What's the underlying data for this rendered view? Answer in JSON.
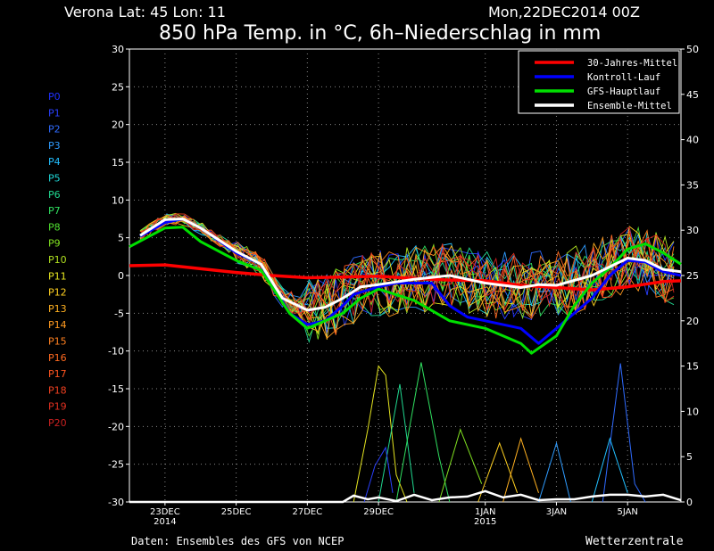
{
  "header": {
    "location": "Verona   Lat: 45 Lon: 11",
    "run": "Mon,22DEC2014 00Z",
    "title": "850 hPa Temp. in °C, 6h–Niederschlag in mm"
  },
  "footer": {
    "credit": "Daten: Ensembles des GFS von NCEP",
    "brand": "Wetterzentrale"
  },
  "chart_data": {
    "type": "line",
    "x_ticks": [
      {
        "label": "23DEC",
        "sub": "2014",
        "day": 1.0
      },
      {
        "label": "25DEC",
        "sub": "",
        "day": 3.0
      },
      {
        "label": "27DEC",
        "sub": "",
        "day": 5.0
      },
      {
        "label": "29DEC",
        "sub": "",
        "day": 7.0
      },
      {
        "label": "1JAN",
        "sub": "2015",
        "day": 10.0
      },
      {
        "label": "3JAN",
        "sub": "",
        "day": 12.0
      },
      {
        "label": "5JAN",
        "sub": "",
        "day": 14.0
      }
    ],
    "xlim": [
      0.0,
      15.5
    ],
    "left_axis": {
      "ylim": [
        -30,
        30
      ],
      "ticks": [
        -30,
        -25,
        -20,
        -15,
        -10,
        -5,
        0,
        5,
        10,
        15,
        20,
        25,
        30
      ]
    },
    "right_axis": {
      "ylim": [
        0,
        50
      ],
      "ticks": [
        0,
        5,
        10,
        15,
        20,
        25,
        30,
        35,
        40,
        45,
        50
      ]
    },
    "legend": {
      "position": "top-right",
      "entries": [
        {
          "name": "30-Jahres-Mittel",
          "color": "#ff0000"
        },
        {
          "name": "Kontroll-Lauf",
          "color": "#0000ff"
        },
        {
          "name": "GFS-Hauptlauf",
          "color": "#00e000"
        },
        {
          "name": "Ensemble-Mittel",
          "color": "#ffffff"
        }
      ]
    },
    "members": [
      {
        "name": "P0",
        "color": "#1f30ff"
      },
      {
        "name": "P1",
        "color": "#2a40ff"
      },
      {
        "name": "P2",
        "color": "#2f6bff"
      },
      {
        "name": "P3",
        "color": "#2f9cff"
      },
      {
        "name": "P4",
        "color": "#22bfff"
      },
      {
        "name": "P5",
        "color": "#1fd6d6"
      },
      {
        "name": "P6",
        "color": "#20d890"
      },
      {
        "name": "P7",
        "color": "#30e060"
      },
      {
        "name": "P8",
        "color": "#50e030"
      },
      {
        "name": "P9",
        "color": "#80e020"
      },
      {
        "name": "P10",
        "color": "#b0e020"
      },
      {
        "name": "P11",
        "color": "#e6e620"
      },
      {
        "name": "P12",
        "color": "#ffd020"
      },
      {
        "name": "P13",
        "color": "#ffb020"
      },
      {
        "name": "P14",
        "color": "#ff9a20"
      },
      {
        "name": "P15",
        "color": "#ff8020"
      },
      {
        "name": "P16",
        "color": "#ff6a20"
      },
      {
        "name": "P17",
        "color": "#ff5520"
      },
      {
        "name": "P18",
        "color": "#f04020"
      },
      {
        "name": "P19",
        "color": "#e03020"
      },
      {
        "name": "P20",
        "color": "#c82020"
      }
    ],
    "series": [
      {
        "name": "30-Jahres-Mittel",
        "color": "#ff0000",
        "width": 3.5,
        "points": [
          [
            0,
            1.3
          ],
          [
            1,
            1.4
          ],
          [
            2,
            0.9
          ],
          [
            3,
            0.4
          ],
          [
            4,
            0
          ],
          [
            5,
            -0.3
          ],
          [
            6,
            -0.2
          ],
          [
            7,
            -0.1
          ],
          [
            8,
            -0.4
          ],
          [
            9,
            -0.6
          ],
          [
            10,
            -0.7
          ],
          [
            11,
            -1.3
          ],
          [
            12,
            -1.6
          ],
          [
            13,
            -1.9
          ],
          [
            14,
            -1.5
          ],
          [
            15,
            -0.8
          ],
          [
            15.5,
            -0.7
          ]
        ]
      },
      {
        "name": "Kontroll-Lauf",
        "color": "#0000ff",
        "width": 3,
        "points": [
          [
            0.3,
            5.2
          ],
          [
            1,
            7
          ],
          [
            1.5,
            7.5
          ],
          [
            2,
            6.3
          ],
          [
            3,
            3
          ],
          [
            3.7,
            1.5
          ],
          [
            4.5,
            -5
          ],
          [
            5,
            -6.5
          ],
          [
            5.5,
            -6
          ],
          [
            6,
            -4
          ],
          [
            6.3,
            -2.5
          ],
          [
            7,
            -1.5
          ],
          [
            7.5,
            -1
          ],
          [
            8.5,
            -1
          ],
          [
            9,
            -4
          ],
          [
            9.5,
            -5.5
          ],
          [
            10,
            -6
          ],
          [
            11,
            -7
          ],
          [
            11.5,
            -9
          ],
          [
            12,
            -7
          ],
          [
            13,
            -3
          ],
          [
            13.5,
            0
          ],
          [
            14,
            2
          ],
          [
            14.5,
            1.8
          ],
          [
            15,
            0.5
          ],
          [
            15.5,
            0
          ]
        ]
      },
      {
        "name": "GFS-Hauptlauf",
        "color": "#00e000",
        "width": 3,
        "points": [
          [
            0,
            3.8
          ],
          [
            1,
            6.3
          ],
          [
            1.5,
            6.4
          ],
          [
            2,
            4.5
          ],
          [
            3,
            2
          ],
          [
            3.7,
            0.7
          ],
          [
            4.5,
            -5
          ],
          [
            5,
            -7
          ],
          [
            6,
            -5
          ],
          [
            6.5,
            -3
          ],
          [
            7,
            -1.8
          ],
          [
            8,
            -3.3
          ],
          [
            9,
            -6
          ],
          [
            10,
            -7
          ],
          [
            11,
            -9
          ],
          [
            11.3,
            -10.3
          ],
          [
            12,
            -8
          ],
          [
            12.5,
            -4
          ],
          [
            13,
            -1
          ],
          [
            13.5,
            1
          ],
          [
            14,
            3.5
          ],
          [
            14.5,
            4.2
          ],
          [
            15,
            3
          ],
          [
            15.5,
            1.5
          ]
        ]
      },
      {
        "name": "Ensemble-Mittel",
        "color": "#ffffff",
        "width": 3,
        "points": [
          [
            0.3,
            5.3
          ],
          [
            1,
            7.4
          ],
          [
            1.5,
            7.5
          ],
          [
            2,
            6.3
          ],
          [
            3,
            3.2
          ],
          [
            3.7,
            1.5
          ],
          [
            4.3,
            -3
          ],
          [
            5,
            -4.6
          ],
          [
            5.5,
            -4.2
          ],
          [
            6,
            -3
          ],
          [
            6.5,
            -1.5
          ],
          [
            7,
            -1.2
          ],
          [
            8,
            -0.5
          ],
          [
            9,
            0
          ],
          [
            9.5,
            -0.5
          ],
          [
            10,
            -1
          ],
          [
            11,
            -1.6
          ],
          [
            11.5,
            -1.2
          ],
          [
            12,
            -1.3
          ],
          [
            13,
            0
          ],
          [
            14,
            2.3
          ],
          [
            14.5,
            2
          ],
          [
            15,
            0.8
          ],
          [
            15.5,
            0.5
          ]
        ]
      }
    ],
    "ensemble_spread_note": "",
    "precip_mean": [
      [
        0,
        0
      ],
      [
        5,
        0
      ],
      [
        6,
        0
      ],
      [
        6.3,
        0.7
      ],
      [
        6.7,
        0.3
      ],
      [
        7,
        0.5
      ],
      [
        7.5,
        0.1
      ],
      [
        8,
        0.8
      ],
      [
        8.5,
        0.2
      ],
      [
        9,
        0.5
      ],
      [
        9.5,
        0.6
      ],
      [
        10,
        1.2
      ],
      [
        10.5,
        0.5
      ],
      [
        11,
        0.8
      ],
      [
        11.5,
        0.2
      ],
      [
        12,
        0.3
      ],
      [
        12.5,
        0.3
      ],
      [
        13,
        0.6
      ],
      [
        13.5,
        0.8
      ],
      [
        14,
        0.8
      ],
      [
        14.5,
        0.6
      ],
      [
        15,
        0.8
      ],
      [
        15.5,
        0.2
      ]
    ],
    "precip_peaks": [
      {
        "member": 11,
        "points": [
          [
            6.3,
            0
          ],
          [
            6.7,
            8
          ],
          [
            7,
            15
          ],
          [
            7.2,
            14
          ],
          [
            7.5,
            3
          ],
          [
            7.8,
            0
          ]
        ]
      },
      {
        "member": 6,
        "points": [
          [
            7,
            0
          ],
          [
            7.6,
            13
          ],
          [
            8,
            1
          ]
        ]
      },
      {
        "member": 7,
        "points": [
          [
            7.5,
            0
          ],
          [
            8.2,
            15.4
          ],
          [
            8.7,
            5
          ],
          [
            9,
            0
          ]
        ]
      },
      {
        "member": 1,
        "points": [
          [
            6.6,
            0
          ],
          [
            6.9,
            4
          ],
          [
            7.2,
            6
          ],
          [
            7.4,
            1
          ]
        ]
      },
      {
        "member": 2,
        "points": [
          [
            13.3,
            0
          ],
          [
            13.8,
            15.3
          ],
          [
            14.2,
            2
          ],
          [
            14.5,
            0
          ]
        ]
      },
      {
        "member": 4,
        "points": [
          [
            13,
            0
          ],
          [
            13.5,
            7
          ],
          [
            14,
            1
          ]
        ]
      },
      {
        "member": 3,
        "points": [
          [
            11.5,
            0
          ],
          [
            12,
            6.5
          ],
          [
            12.4,
            0
          ]
        ]
      },
      {
        "member": 12,
        "points": [
          [
            9.8,
            0
          ],
          [
            10.4,
            6.5
          ],
          [
            10.9,
            1
          ]
        ]
      },
      {
        "member": 9,
        "points": [
          [
            8.7,
            0
          ],
          [
            9.3,
            8
          ],
          [
            9.9,
            2
          ]
        ]
      },
      {
        "member": 13,
        "points": [
          [
            10.5,
            0
          ],
          [
            11,
            7
          ],
          [
            11.5,
            1
          ]
        ]
      }
    ]
  }
}
